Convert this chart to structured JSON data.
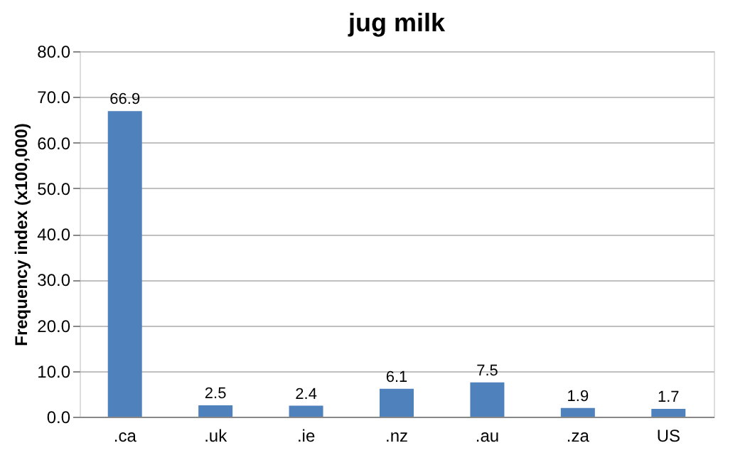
{
  "chart_data": {
    "type": "bar",
    "title": "jug milk",
    "ylabel": "Frequency index (x100,000)",
    "categories": [
      ".ca",
      ".uk",
      ".ie",
      ".nz",
      ".au",
      ".za",
      "US"
    ],
    "values": [
      66.9,
      2.5,
      2.4,
      6.1,
      7.5,
      1.9,
      1.7
    ],
    "color": "#4f81bd",
    "data_labels": true,
    "ylim": [
      0,
      80
    ],
    "yticks": [
      {
        "value": 0,
        "label": "0.0"
      },
      {
        "value": 10,
        "label": "10.0"
      },
      {
        "value": 20,
        "label": "20.0"
      },
      {
        "value": 30,
        "label": "30.0"
      },
      {
        "value": 40,
        "label": "40.0"
      },
      {
        "value": 50,
        "label": "50.0"
      },
      {
        "value": 60,
        "label": "60.0"
      },
      {
        "value": 70,
        "label": "70.0"
      },
      {
        "value": 80,
        "label": "80.0"
      }
    ],
    "grid": "y"
  }
}
